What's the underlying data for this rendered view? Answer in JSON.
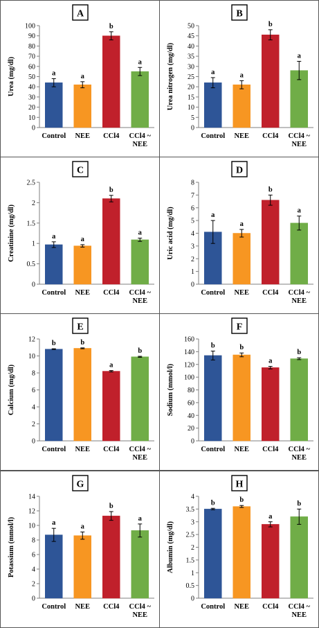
{
  "chart_data": [
    {
      "type": "bar",
      "panel_label": "A",
      "ylabel": "Urea (mg/dl)",
      "categories": [
        "Control",
        "NEE",
        "CCl4",
        "CCl4 ~ NEE"
      ],
      "values": [
        44,
        42,
        90,
        55
      ],
      "errors": [
        4,
        3,
        4,
        4
      ],
      "significance": [
        "a",
        "a",
        "b",
        "a"
      ],
      "ylim": [
        0,
        100
      ],
      "yticks": [
        0,
        10,
        20,
        30,
        40,
        50,
        60,
        70,
        80,
        90,
        100
      ],
      "ytick_labels": [
        "0",
        "10",
        "20",
        "30",
        "40",
        "50",
        "60",
        "70",
        "80",
        "90",
        "100"
      ]
    },
    {
      "type": "bar",
      "panel_label": "B",
      "ylabel": "Urea nitrogen (mg/dl)",
      "categories": [
        "Control",
        "NEE",
        "CCl4",
        "CCl4 ~ NEE"
      ],
      "values": [
        22,
        21,
        45.5,
        28
      ],
      "errors": [
        2.5,
        2,
        2.5,
        4.5
      ],
      "significance": [
        "a",
        "a",
        "b",
        "a"
      ],
      "ylim": [
        0,
        50
      ],
      "yticks": [
        0,
        5,
        10,
        15,
        20,
        25,
        30,
        35,
        40,
        45,
        50
      ],
      "ytick_labels": [
        "0",
        "5",
        "10",
        "15",
        "20",
        "25",
        "30",
        "35",
        "40",
        "45",
        "50"
      ]
    },
    {
      "type": "bar",
      "panel_label": "C",
      "ylabel": "Creatinine (mg/dl)",
      "categories": [
        "Control",
        "NEE",
        "CCl4",
        "CCl4 ~ NEE"
      ],
      "values": [
        0.97,
        0.94,
        2.1,
        1.09
      ],
      "errors": [
        0.07,
        0.03,
        0.08,
        0.04
      ],
      "significance": [
        "a",
        "a",
        "b",
        "a"
      ],
      "ylim": [
        0,
        2.5
      ],
      "yticks": [
        0,
        0.5,
        1,
        1.5,
        2,
        2.5
      ],
      "ytick_labels": [
        "0",
        "0.5",
        "1",
        "1.5",
        "2",
        "2.5"
      ]
    },
    {
      "type": "bar",
      "panel_label": "D",
      "ylabel": "Uric acid (mg/dl)",
      "categories": [
        "Control",
        "NEE",
        "CCl4",
        "CCl4 ~ NEE"
      ],
      "values": [
        4.1,
        4.0,
        6.6,
        4.8
      ],
      "errors": [
        0.9,
        0.3,
        0.4,
        0.55
      ],
      "significance": [
        "a",
        "a",
        "b",
        "a"
      ],
      "ylim": [
        0,
        8
      ],
      "yticks": [
        0,
        1,
        2,
        3,
        4,
        5,
        6,
        7,
        8
      ],
      "ytick_labels": [
        "0",
        "1",
        "2",
        "3",
        "4",
        "5",
        "6",
        "7",
        "8"
      ]
    },
    {
      "type": "bar",
      "panel_label": "E",
      "ylabel": "Calcium (mg/dl)",
      "categories": [
        "Control",
        "NEE",
        "CCl4",
        "CCl4 ~ NEE"
      ],
      "values": [
        10.8,
        10.9,
        8.2,
        9.9
      ],
      "errors": [
        0.05,
        0.05,
        0.08,
        0.06
      ],
      "significance": [
        "b",
        "b",
        "a",
        "b"
      ],
      "ylim": [
        0,
        12
      ],
      "yticks": [
        0,
        2,
        4,
        6,
        8,
        10,
        12
      ],
      "ytick_labels": [
        "0",
        "2",
        "4",
        "6",
        "8",
        "10",
        "12"
      ]
    },
    {
      "type": "bar",
      "panel_label": "F",
      "ylabel": "Sodium (mmol/l)",
      "categories": [
        "Control",
        "NEE",
        "CCl4",
        "CCl4 ~ NEE"
      ],
      "values": [
        134,
        135,
        115,
        129
      ],
      "errors": [
        7,
        3,
        2,
        1.5
      ],
      "significance": [
        "b",
        "b",
        "a",
        "b"
      ],
      "ylim": [
        0,
        160
      ],
      "yticks": [
        0,
        20,
        40,
        60,
        80,
        100,
        120,
        140,
        160
      ],
      "ytick_labels": [
        "0",
        "20",
        "40",
        "60",
        "80",
        "100",
        "120",
        "140",
        "160"
      ]
    },
    {
      "type": "bar",
      "panel_label": "G",
      "ylabel": "Potassium (mmol/l)",
      "categories": [
        "Control",
        "NEE",
        "CCl4",
        "CCl4 ~ NEE"
      ],
      "values": [
        8.7,
        8.6,
        11.3,
        9.3
      ],
      "errors": [
        0.9,
        0.5,
        0.6,
        0.9
      ],
      "significance": [
        "a",
        "a",
        "b",
        "a"
      ],
      "ylim": [
        0,
        14
      ],
      "yticks": [
        0,
        2,
        4,
        6,
        8,
        10,
        12,
        14
      ],
      "ytick_labels": [
        "0",
        "2",
        "4",
        "6",
        "8",
        "10",
        "12",
        "14"
      ]
    },
    {
      "type": "bar",
      "panel_label": "H",
      "ylabel": "Albumin (mg/dl)",
      "categories": [
        "Control",
        "NEE",
        "CCl4",
        "CCl4 ~ NEE"
      ],
      "values": [
        3.5,
        3.6,
        2.9,
        3.2
      ],
      "errors": [
        0.03,
        0.04,
        0.1,
        0.3
      ],
      "significance": [
        "b",
        "b",
        "a",
        "b"
      ],
      "ylim": [
        0,
        4
      ],
      "yticks": [
        0,
        0.5,
        1,
        1.5,
        2,
        2.5,
        3,
        3.5,
        4
      ],
      "ytick_labels": [
        "0",
        "0.5",
        "1",
        "1.5",
        "2",
        "2.5",
        "3",
        "3.5",
        "4"
      ]
    }
  ],
  "colors": {
    "Control": "#2e5597",
    "NEE": "#f79622",
    "CCl4": "#c0202b",
    "CCl4 ~ NEE": "#70ad47",
    "axis": "#7f7f7f",
    "error_bar": "#000000"
  }
}
